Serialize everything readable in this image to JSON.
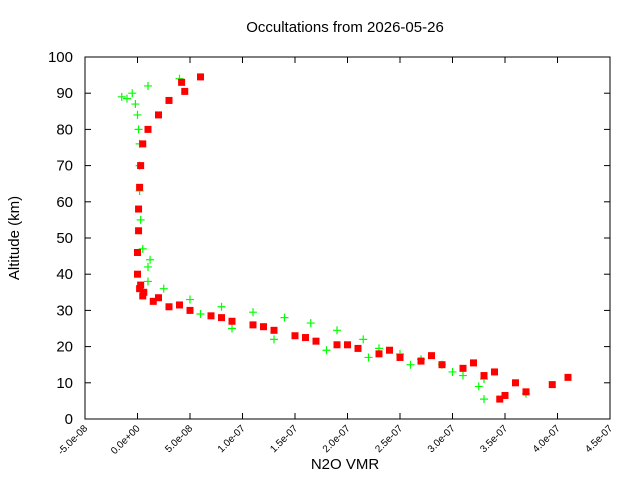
{
  "chart_data": {
    "type": "scatter",
    "title": "Occultations from 2026-05-26",
    "xlabel": "N2O VMR",
    "ylabel": "Altitude (km)",
    "xlim": [
      -5e-08,
      4.5e-07
    ],
    "ylim": [
      0,
      100
    ],
    "grid": false,
    "legend": "none",
    "x_ticks": [
      "-5.0e-08",
      "0.0e+00",
      "5.0e-08",
      "1.0e-07",
      "1.5e-07",
      "2.0e-07",
      "2.5e-07",
      "3.0e-07",
      "3.5e-07",
      "4.0e-07",
      "4.5e-07"
    ],
    "x_tick_values": [
      -5e-08,
      0,
      5e-08,
      1e-07,
      1.5e-07,
      2e-07,
      2.5e-07,
      3e-07,
      3.5e-07,
      4e-07,
      4.5e-07
    ],
    "y_ticks": [
      "0",
      "10",
      "20",
      "30",
      "40",
      "50",
      "60",
      "70",
      "80",
      "90",
      "100"
    ],
    "y_tick_values": [
      0,
      10,
      20,
      30,
      40,
      50,
      60,
      70,
      80,
      90,
      100
    ],
    "series": [
      {
        "color": "#00ff00",
        "marker": "plus",
        "x": [
          3.3e-07,
          3.25e-07,
          3.1e-07,
          2.9e-07,
          2.7e-07,
          2.5e-07,
          2.3e-07,
          2.15e-07,
          1.9e-07,
          1.65e-07,
          1.4e-07,
          1.1e-07,
          8e-08,
          5e-08,
          2.5e-08,
          1e-08,
          5e-09,
          3e-09,
          2e-09,
          2e-09,
          2e-09,
          1e-09,
          0,
          -2e-09,
          -1e-08,
          -1.5e-08,
          -5e-09,
          1e-08,
          4e-08,
          3.7e-07,
          3.3e-07,
          3e-07,
          2.6e-07,
          2.2e-07,
          1.8e-07,
          1.3e-07,
          9e-08,
          6e-08,
          1e-08,
          1.2e-08
        ],
        "y": [
          5.5,
          9,
          12,
          15,
          16.5,
          18,
          19.5,
          22,
          24.5,
          26.5,
          28,
          29.5,
          31,
          33,
          36,
          42,
          47,
          55,
          63,
          70,
          76,
          80,
          84,
          87,
          88.5,
          89,
          90,
          92,
          94,
          7,
          11,
          13,
          15,
          17,
          19,
          22,
          25,
          29,
          38,
          44
        ]
      },
      {
        "color": "#ff0000",
        "marker": "square",
        "x": [
          4.1e-07,
          3.95e-07,
          3.7e-07,
          3.5e-07,
          3.45e-07,
          3.3e-07,
          3.1e-07,
          2.9e-07,
          2.7e-07,
          2.5e-07,
          2.3e-07,
          2.1e-07,
          1.9e-07,
          1.7e-07,
          1.5e-07,
          1.3e-07,
          1.1e-07,
          9e-08,
          7e-08,
          5e-08,
          3e-08,
          1.5e-08,
          5e-09,
          2e-09,
          0,
          0,
          1e-09,
          1e-09,
          2e-09,
          3e-09,
          5e-09,
          1e-08,
          2e-08,
          3e-08,
          4.5e-08,
          6e-08,
          4.2e-08,
          3.6e-07,
          3.4e-07,
          3.2e-07,
          2.8e-07,
          2.4e-07,
          2e-07,
          1.6e-07,
          1.2e-07,
          8e-08,
          4e-08,
          2e-08,
          6e-09,
          3e-09
        ],
        "y": [
          11.5,
          9.5,
          7.5,
          6.5,
          5.5,
          12,
          14,
          15,
          16,
          17,
          18,
          19.5,
          20.5,
          21.5,
          23,
          24.5,
          26,
          27,
          28.5,
          30,
          31,
          32.5,
          34,
          36,
          40,
          46,
          52,
          58,
          64,
          70,
          76,
          80,
          84,
          88,
          90.5,
          94.5,
          93,
          10,
          13,
          15.5,
          17.5,
          19,
          20.5,
          22.5,
          25.5,
          28,
          31.5,
          33.5,
          35,
          37
        ]
      }
    ]
  }
}
